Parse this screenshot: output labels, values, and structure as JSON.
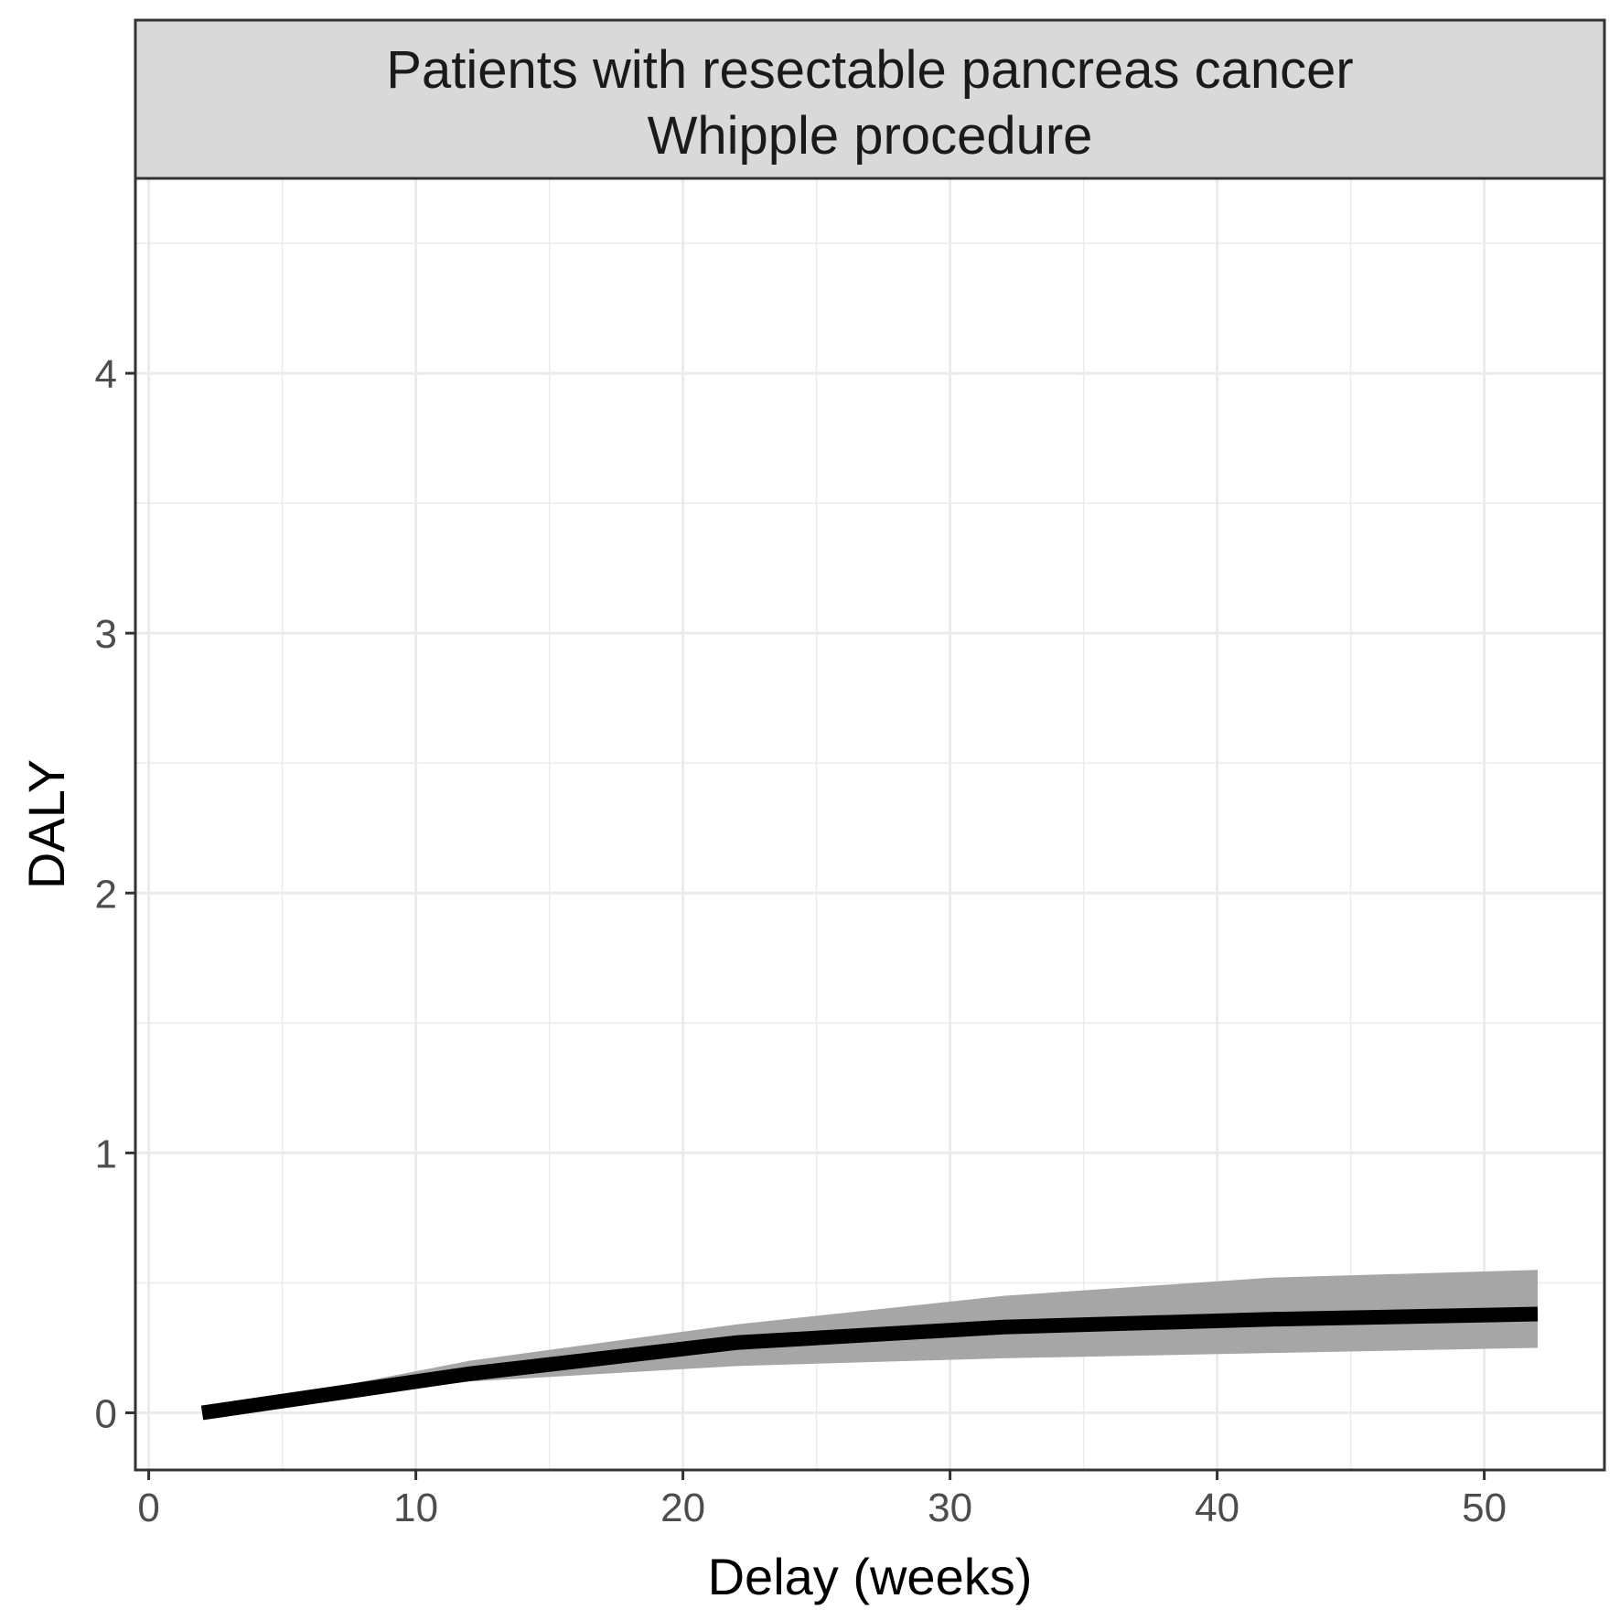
{
  "chart_data": {
    "type": "area",
    "strip_title_lines": [
      "Patients with resectable pancreas cancer",
      "Whipple procedure"
    ],
    "xlabel": "Delay (weeks)",
    "ylabel": "DALY",
    "xlim": [
      -0.5,
      54.5
    ],
    "ylim": [
      -0.22,
      4.75
    ],
    "x_ticks": [
      0,
      10,
      20,
      30,
      40,
      50
    ],
    "x_tick_labels": [
      "0",
      "10",
      "20",
      "30",
      "40",
      "50"
    ],
    "y_ticks": [
      0,
      1,
      2,
      3,
      4
    ],
    "y_tick_labels": [
      "0",
      "1",
      "2",
      "3",
      "4"
    ],
    "x_minor": [
      5,
      15,
      25,
      35,
      45
    ],
    "y_minor": [
      0.5,
      1.5,
      2.5,
      3.5,
      4.5
    ],
    "grid": true,
    "colors": {
      "line": "#000000",
      "ribbon": "#a6a6a6",
      "grid": "#ebebeb",
      "strip_fill": "#d9d9d9",
      "frame": "#333333"
    },
    "series": [
      {
        "x": [
          2,
          12,
          22,
          32,
          42,
          52
        ],
        "y": [
          0.0,
          0.15,
          0.27,
          0.33,
          0.36,
          0.38
        ],
        "lower": [
          0.0,
          0.12,
          0.18,
          0.21,
          0.23,
          0.25
        ],
        "upper": [
          0.0,
          0.2,
          0.34,
          0.45,
          0.52,
          0.55
        ]
      }
    ]
  }
}
